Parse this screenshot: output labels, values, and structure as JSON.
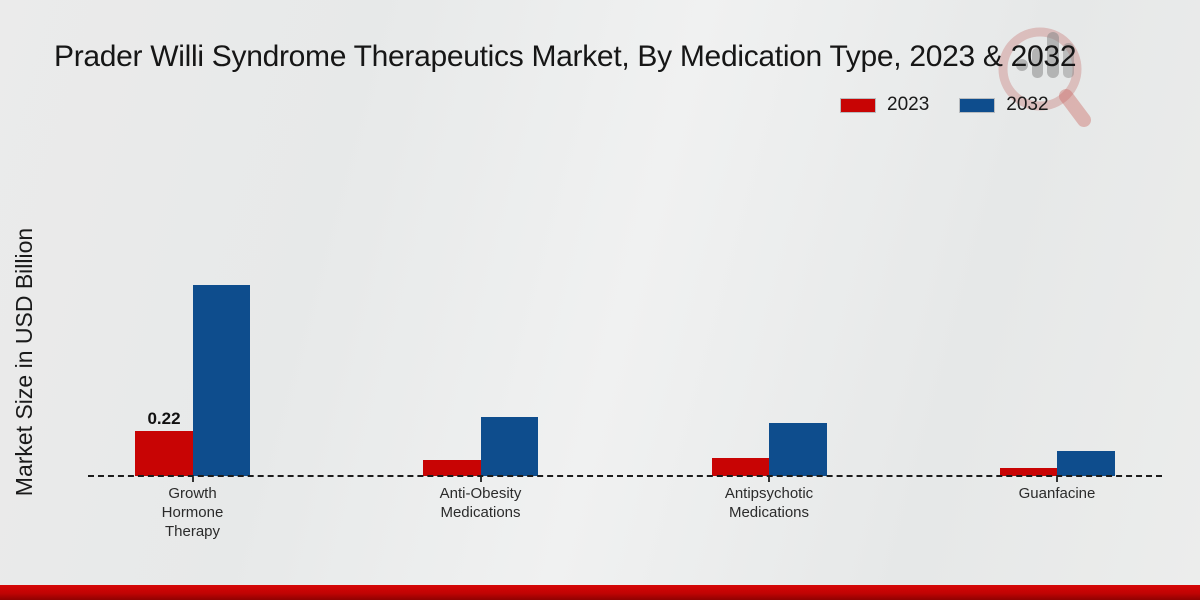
{
  "title": "Prader Willi Syndrome Therapeutics Market, By Medication Type, 2023 & 2032",
  "ylabel": "Market Size in USD Billion",
  "legend": {
    "items": [
      {
        "label": "2023",
        "color": "#c80404"
      },
      {
        "label": "2032",
        "color": "#0e4d8d"
      }
    ]
  },
  "watermark_icon": "magnifier-bar-chart-logo",
  "footer_accent_color": "#c00404",
  "chart_data": {
    "type": "bar",
    "title": "Prader Willi Syndrome Therapeutics Market, By Medication Type, 2023 & 2032",
    "xlabel": "",
    "ylabel": "Market Size in USD Billion",
    "categories": [
      "Growth Hormone Therapy",
      "Anti-Obesity Medications",
      "Antipsychotic Medications",
      "Guanfacine"
    ],
    "category_label_lines": [
      "Growth\nHormone\nTherapy",
      "Anti-Obesity\nMedications",
      "Antipsychotic\nMedications",
      "Guanfacine"
    ],
    "series": [
      {
        "name": "2023",
        "color": "#c80404",
        "values": [
          0.22,
          0.08,
          0.09,
          0.04
        ]
      },
      {
        "name": "2032",
        "color": "#0e4d8d",
        "values": [
          0.93,
          0.29,
          0.26,
          0.12
        ]
      }
    ],
    "bar_labels": [
      {
        "series": "2023",
        "category": "Growth Hormone Therapy",
        "text": "0.22"
      }
    ],
    "ylim": [
      0,
      1.0
    ],
    "grid": false,
    "axis_line_style": "dashed",
    "legend_position": "top-right",
    "units": "USD Billion"
  }
}
